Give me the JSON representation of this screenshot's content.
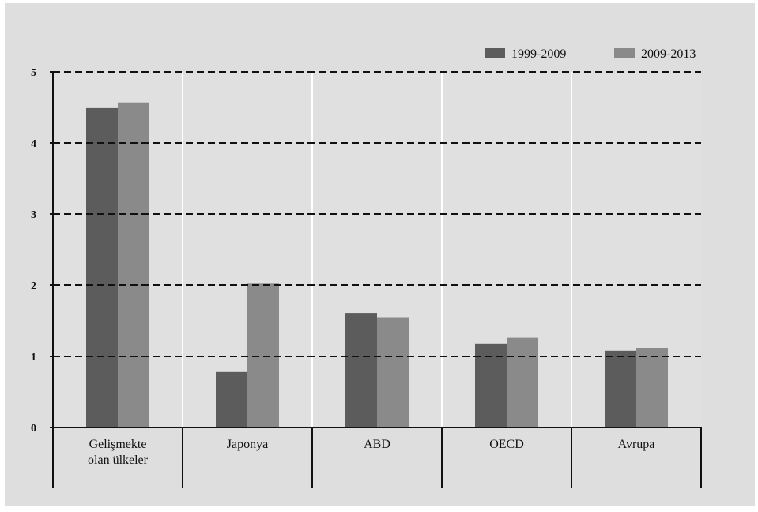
{
  "chart_data": {
    "type": "bar",
    "categories": [
      [
        "Gelişmekte",
        "olan ülkeler"
      ],
      [
        "Japonya"
      ],
      [
        "ABD"
      ],
      [
        "OECD"
      ],
      [
        "Avrupa"
      ]
    ],
    "series": [
      {
        "name": "1999-2009",
        "color": "#5c5c5c",
        "values": [
          4.49,
          0.78,
          1.61,
          1.18,
          1.08
        ]
      },
      {
        "name": "2009-2013",
        "color": "#8a8a8a",
        "values": [
          4.57,
          2.03,
          1.55,
          1.26,
          1.12
        ]
      }
    ],
    "y_ticks": [
      "0",
      "1",
      "2",
      "3",
      "4",
      "5"
    ],
    "ylim": [
      0,
      5
    ],
    "grid": true,
    "legend_position": "top-right",
    "colors": {
      "page_background": "#ffffff",
      "frame_background": "#dedede",
      "plot_background": "#e0e0e0",
      "grid_line": "#111111",
      "separator": "#ffffff",
      "axis": "#111111"
    }
  }
}
